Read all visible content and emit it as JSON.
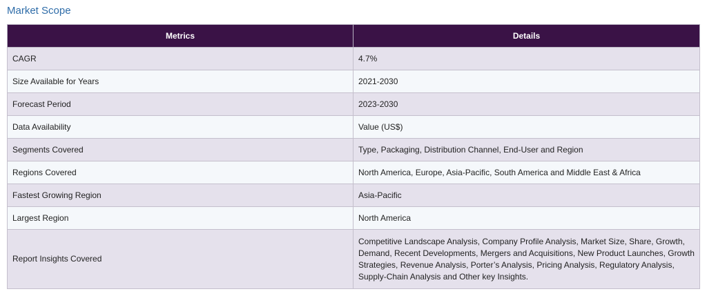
{
  "title": "Market Scope",
  "headers": {
    "metrics": "Metrics",
    "details": "Details"
  },
  "rows": [
    {
      "metric": "CAGR",
      "detail": "4.7%"
    },
    {
      "metric": "Size Available for Years",
      "detail": "2021-2030"
    },
    {
      "metric": "Forecast Period",
      "detail": "2023-2030"
    },
    {
      "metric": "Data Availability",
      "detail": "Value (US$)"
    },
    {
      "metric": "Segments Covered",
      "detail": "Type, Packaging, Distribution Channel, End-User and Region"
    },
    {
      "metric": "Regions Covered",
      "detail": "North America, Europe, Asia-Pacific, South America and Middle East & Africa"
    },
    {
      "metric": "Fastest Growing Region",
      "detail": "Asia-Pacific"
    },
    {
      "metric": "Largest Region",
      "detail": "North America"
    },
    {
      "metric": "Report Insights Covered",
      "detail": "Competitive Landscape Analysis, Company Profile Analysis, Market Size, Share, Growth, Demand, Recent Developments, Mergers and Acquisitions, New Product Launches, Growth Strategies, Revenue Analysis, Porter’s Analysis, Pricing Analysis, Regulatory Analysis, Supply-Chain Analysis and Other key Insights."
    }
  ],
  "colors": {
    "header_bg": "#3a1246",
    "row_odd": "#e5e1ec",
    "row_even": "#f5f8fb",
    "title": "#2e6ca8"
  }
}
